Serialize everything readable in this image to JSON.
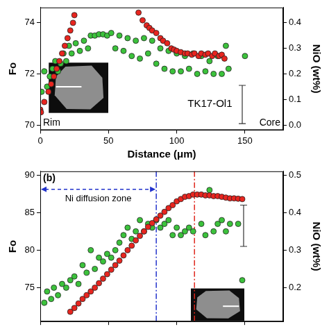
{
  "chart_data": [
    {
      "type": "scatter",
      "x_label": "Distance (μm)",
      "y_label": "Fo",
      "y2_label": "NiO (wt%)",
      "sample": "TK17-Ol1",
      "rim_label": "Rim",
      "core_label": "Core",
      "xlim": [
        0,
        178
      ],
      "xticks": [
        0,
        50,
        100,
        150
      ],
      "ylim": [
        69.8,
        74.6
      ],
      "yticks": [
        70,
        72,
        74
      ],
      "y2lim": [
        -0.02,
        0.46
      ],
      "y2ticks": [
        {
          "value": 0,
          "label": "0.0"
        },
        0.1,
        0.2,
        0.3,
        0.4
      ],
      "grid": false,
      "series": [
        {
          "color": "#e8251f",
          "marker": "circle",
          "x": [
            0,
            0.5,
            3,
            6,
            8,
            10,
            12,
            14,
            16,
            18,
            20,
            22,
            24,
            25,
            72,
            75,
            78,
            80,
            82,
            85,
            88,
            90,
            93,
            96,
            98,
            100,
            103,
            106,
            108,
            111,
            113,
            116,
            118,
            121,
            123,
            126,
            128,
            131,
            133,
            135
          ],
          "values": [
            70.6,
            70.5,
            70.9,
            71.3,
            71.6,
            71.9,
            72.2,
            72.5,
            72.8,
            73.1,
            73.4,
            73.7,
            74.0,
            74.3,
            74.4,
            74.1,
            73.9,
            73.8,
            73.7,
            73.6,
            73.4,
            73.3,
            73.2,
            73.0,
            72.95,
            72.9,
            72.85,
            72.8,
            72.8,
            72.75,
            72.8,
            72.7,
            72.8,
            72.75,
            72.8,
            72.7,
            72.8,
            72.7,
            72.75,
            72.6
          ]
        },
        {
          "color": "#3cc23c",
          "marker": "circle",
          "axis": "y2",
          "x": [
            1,
            3,
            5,
            7,
            9,
            11,
            13,
            15,
            17,
            19,
            21,
            23,
            26,
            29,
            32,
            35,
            37,
            40,
            43,
            46,
            49,
            52,
            55,
            58,
            61,
            64,
            67,
            70,
            73,
            76,
            79,
            82,
            85,
            88,
            91,
            94,
            97,
            100,
            103,
            106,
            109,
            112,
            115,
            118,
            121,
            124,
            127,
            130,
            133,
            136,
            138,
            150
          ],
          "values": [
            0.13,
            0.21,
            0.15,
            0.19,
            0.22,
            0.25,
            0.21,
            0.24,
            0.28,
            0.25,
            0.31,
            0.28,
            0.32,
            0.29,
            0.33,
            0.3,
            0.35,
            0.35,
            0.355,
            0.355,
            0.35,
            0.36,
            0.3,
            0.35,
            0.29,
            0.34,
            0.27,
            0.33,
            0.26,
            0.34,
            0.28,
            0.33,
            0.24,
            0.3,
            0.22,
            0.29,
            0.21,
            0.28,
            0.21,
            0.27,
            0.22,
            0.28,
            0.2,
            0.27,
            0.21,
            0.25,
            0.2,
            0.27,
            0.2,
            0.31,
            0.22,
            0.27
          ]
        }
      ],
      "error_bar": {
        "x": 148,
        "y": 0.08,
        "error": 0.075,
        "axis": "y2"
      }
    },
    {
      "type": "scatter",
      "y_label": "Fo",
      "y2_label": "NiO (wt%)",
      "panel_label": "(b)",
      "xlim": [
        0,
        178
      ],
      "xticks": [
        0,
        50,
        100,
        150
      ],
      "tick_labels": "y",
      "ylim": [
        70.5,
        90.5
      ],
      "yticks": [
        75,
        80,
        85,
        90
      ],
      "y2lim": [
        0.11,
        0.51
      ],
      "y2ticks": [
        0.2,
        0.3,
        0.4,
        0.5
      ],
      "grid": false,
      "series": [
        {
          "color": "#e8251f",
          "marker": "circle",
          "x": [
            22,
            25,
            28,
            31,
            34,
            37,
            40,
            43,
            46,
            49,
            52,
            55,
            58,
            61,
            64,
            67,
            70,
            73,
            76,
            79,
            82,
            85,
            88,
            91,
            94,
            97,
            100,
            103,
            106,
            109,
            112,
            115,
            118,
            121,
            124,
            127,
            130,
            133,
            136,
            139,
            142,
            145,
            148
          ],
          "values": [
            71.8,
            72.3,
            72.9,
            73.5,
            74.0,
            74.5,
            75.0,
            75.6,
            76.2,
            76.8,
            77.4,
            78.0,
            78.6,
            79.3,
            80.0,
            80.6,
            81.3,
            81.9,
            82.5,
            83.1,
            83.6,
            84.1,
            84.6,
            85.1,
            85.6,
            86.0,
            86.5,
            86.8,
            87.1,
            87.2,
            87.4,
            87.4,
            87.4,
            87.3,
            87.3,
            87.2,
            87.2,
            87.1,
            87.0,
            86.9,
            86.9,
            86.85,
            86.8
          ]
        },
        {
          "color": "#3cc23c",
          "marker": "circle",
          "axis": "y2",
          "x": [
            3,
            5,
            8,
            10,
            13,
            16,
            19,
            22,
            25,
            28,
            31,
            34,
            37,
            40,
            43,
            46,
            49,
            52,
            55,
            58,
            61,
            64,
            67,
            70,
            73,
            76,
            79,
            82,
            85,
            88,
            91,
            94,
            97,
            100,
            103,
            106,
            109,
            112,
            118,
            121,
            124,
            127,
            130,
            133,
            136,
            139,
            145,
            148
          ],
          "values": [
            0.16,
            0.19,
            0.17,
            0.2,
            0.18,
            0.21,
            0.2,
            0.22,
            0.23,
            0.21,
            0.26,
            0.24,
            0.3,
            0.25,
            0.28,
            0.27,
            0.29,
            0.28,
            0.3,
            0.32,
            0.34,
            0.36,
            0.33,
            0.35,
            0.38,
            0.35,
            0.37,
            0.36,
            0.38,
            0.36,
            0.37,
            0.38,
            0.34,
            0.36,
            0.34,
            0.35,
            0.36,
            0.35,
            0.37,
            0.34,
            0.46,
            0.35,
            0.37,
            0.38,
            0.35,
            0.37,
            0.37,
            0.22
          ]
        }
      ],
      "error_bar": {
        "x": 149,
        "y": 0.365,
        "error": 0.055,
        "axis": "y2"
      },
      "zone": {
        "text": "Ni diffusion zone",
        "x_range": [
          0,
          85
        ],
        "color": "#2233cc",
        "line_style": "dashed"
      },
      "vlines": [
        {
          "x": 85,
          "color": "#2233cc",
          "line_style": "dashdot"
        },
        {
          "x": 113,
          "color": "#e0261b",
          "line_style": "dashdot"
        }
      ]
    }
  ]
}
